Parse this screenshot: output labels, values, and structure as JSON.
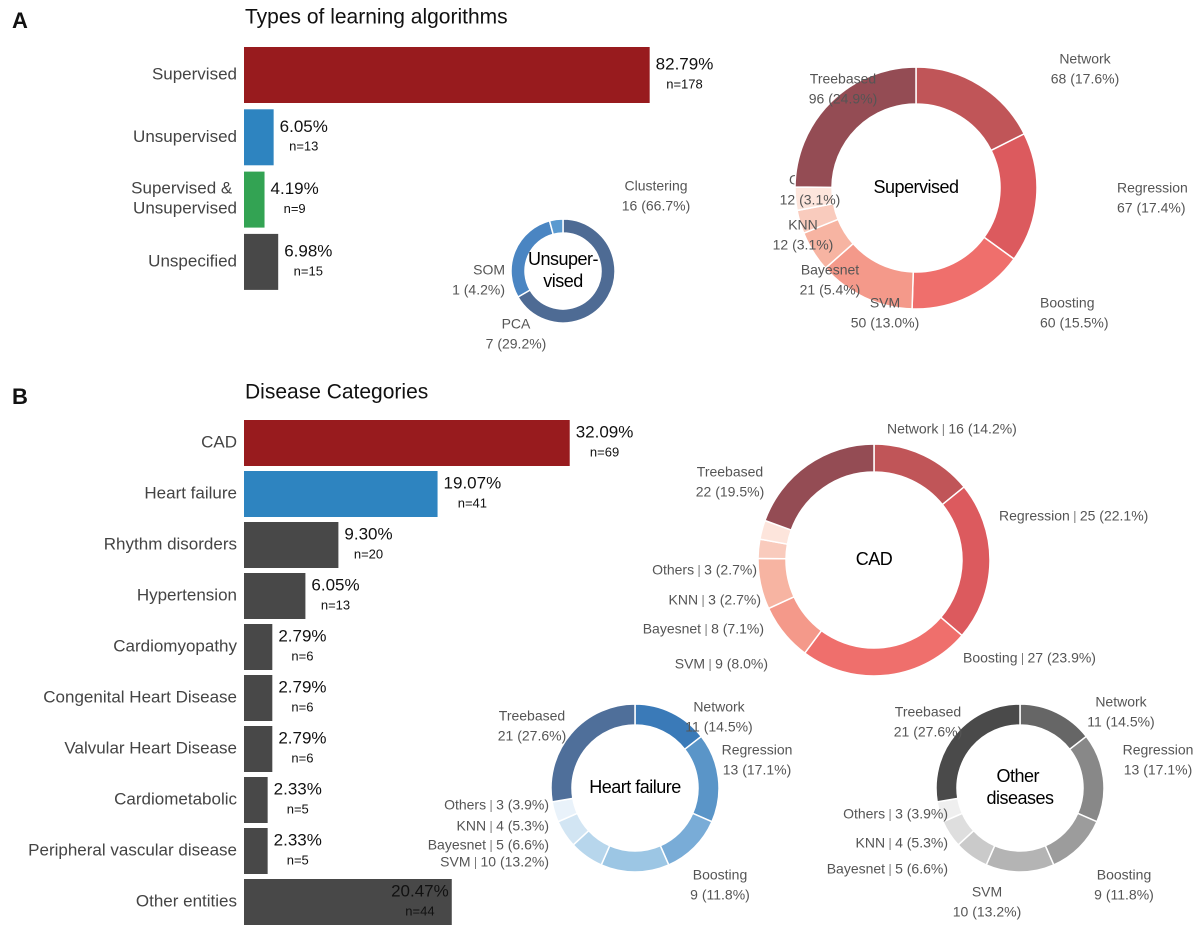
{
  "chart_data": [
    {
      "type": "bar",
      "panel": "A",
      "title": "Types of learning algorithms",
      "categories": [
        "Supervised",
        "Unsupervised",
        "Supervised & Unsupervised",
        "Unspecified"
      ],
      "values": [
        82.79,
        6.05,
        4.19,
        6.98
      ],
      "value_labels": [
        "82.79%",
        "6.05%",
        "4.19%",
        "6.98%"
      ],
      "n": [
        178,
        13,
        9,
        15
      ],
      "n_labels": [
        "n=178",
        "n=13",
        "n=9",
        "n=15"
      ],
      "colors": [
        "#981b1e",
        "#2e84c0",
        "#33a353",
        "#484848"
      ],
      "value_label_position": [
        "outside",
        "outside",
        "outside",
        "outside"
      ],
      "xlim": [
        0,
        100
      ]
    },
    {
      "type": "donut",
      "title": "Unsuper-vised",
      "categories": [
        "Clustering",
        "PCA",
        "SOM"
      ],
      "values": [
        16,
        7,
        1
      ],
      "value_labels": [
        "16 (66.7%)",
        "7 (29.2%)",
        "1 (4.2%)"
      ],
      "colors": [
        "#4e6b94",
        "#4a85c2",
        "#5a9ad0"
      ]
    },
    {
      "type": "donut",
      "title": "Supervised",
      "categories": [
        "Network",
        "Regression",
        "Boosting",
        "SVM",
        "Bayesnet",
        "KNN",
        "Others",
        "Treebased"
      ],
      "values": [
        68,
        67,
        60,
        50,
        21,
        12,
        12,
        96
      ],
      "value_labels": [
        "68 (17.6%)",
        "67 (17.4%)",
        "60 (15.5%)",
        "50 (13.0%)",
        "21 (5.4%)",
        "12 (3.1%)",
        "12 (3.1%)",
        "96 (24.9%)"
      ],
      "colors": [
        "#c05558",
        "#dc5a5e",
        "#ef6f6c",
        "#f4998a",
        "#f7b4a2",
        "#f9cbbd",
        "#fde5dc",
        "#944c54"
      ]
    },
    {
      "type": "bar",
      "panel": "B",
      "title": "Disease Categories",
      "categories": [
        "CAD",
        "Heart failure",
        "Rhythm disorders",
        "Hypertension",
        "Cardiomyopathy",
        "Congenital Heart Disease",
        "Valvular Heart Disease",
        "Cardiometabolic",
        "Peripheral vascular disease",
        "Other entities"
      ],
      "values": [
        32.09,
        19.07,
        9.3,
        6.05,
        2.79,
        2.79,
        2.79,
        2.33,
        2.33,
        20.47
      ],
      "value_labels": [
        "32.09%",
        "19.07%",
        "9.30%",
        "6.05%",
        "2.79%",
        "2.79%",
        "2.79%",
        "2.33%",
        "2.33%",
        "20.47%"
      ],
      "n": [
        69,
        41,
        20,
        13,
        6,
        6,
        6,
        5,
        5,
        44
      ],
      "n_labels": [
        "n=69",
        "n=41",
        "n=20",
        "n=13",
        "n=6",
        "n=6",
        "n=6",
        "n=5",
        "n=5",
        "n=44"
      ],
      "colors": [
        "#981b1e",
        "#2e84c0",
        "#484848",
        "#484848",
        "#484848",
        "#484848",
        "#484848",
        "#484848",
        "#484848",
        "#484848"
      ],
      "value_label_position": [
        "outside",
        "outside",
        "outside",
        "outside",
        "outside",
        "outside",
        "outside",
        "outside",
        "outside",
        "inside"
      ],
      "xlim": [
        0,
        40
      ]
    },
    {
      "type": "donut",
      "title": "CAD",
      "categories": [
        "Network",
        "Regression",
        "Boosting",
        "SVM",
        "Bayesnet",
        "KNN",
        "Others",
        "Treebased"
      ],
      "values": [
        16,
        25,
        27,
        9,
        8,
        3,
        3,
        22
      ],
      "value_labels": [
        "16 (14.2%)",
        "25 (22.1%)",
        "27 (23.9%)",
        "9 (8.0%)",
        "8 (7.1%)",
        "3 (2.7%)",
        "3 (2.7%)",
        "22 (19.5%)"
      ],
      "colors": [
        "#c05558",
        "#dc5a5e",
        "#ef6f6c",
        "#f4998a",
        "#f7b4a2",
        "#f9cbbd",
        "#fde5dc",
        "#944c54"
      ]
    },
    {
      "type": "donut",
      "title": "Heart failure",
      "categories": [
        "Network",
        "Regression",
        "Boosting",
        "SVM",
        "Bayesnet",
        "KNN",
        "Others",
        "Treebased"
      ],
      "values": [
        11,
        13,
        9,
        10,
        5,
        4,
        3,
        21
      ],
      "value_labels": [
        "11 (14.5%)",
        "13 (17.1%)",
        "9 (11.8%)",
        "10 (13.2%)",
        "5 (6.6%)",
        "4 (5.3%)",
        "3 (3.9%)",
        "21 (27.6%)"
      ],
      "colors": [
        "#3a7ab8",
        "#5a95c8",
        "#79acd7",
        "#9cc6e4",
        "#b7d6ec",
        "#d2e5f3",
        "#e9f2fa",
        "#4f6f9a"
      ]
    },
    {
      "type": "donut",
      "title": "Other diseases",
      "categories": [
        "Network",
        "Regression",
        "Boosting",
        "SVM",
        "Bayesnet",
        "KNN",
        "Others",
        "Treebased"
      ],
      "values": [
        11,
        13,
        9,
        10,
        5,
        4,
        3,
        21
      ],
      "value_labels": [
        "11 (14.5%)",
        "13 (17.1%)",
        "9 (11.8%)",
        "10 (13.2%)",
        "5 (6.6%)",
        "4 (5.3%)",
        "3 (3.9%)",
        "21 (27.6%)"
      ],
      "colors": [
        "#666666",
        "#888888",
        "#9c9c9c",
        "#b4b4b4",
        "#cacaca",
        "#dedede",
        "#efefef",
        "#4a4a4a"
      ]
    }
  ]
}
